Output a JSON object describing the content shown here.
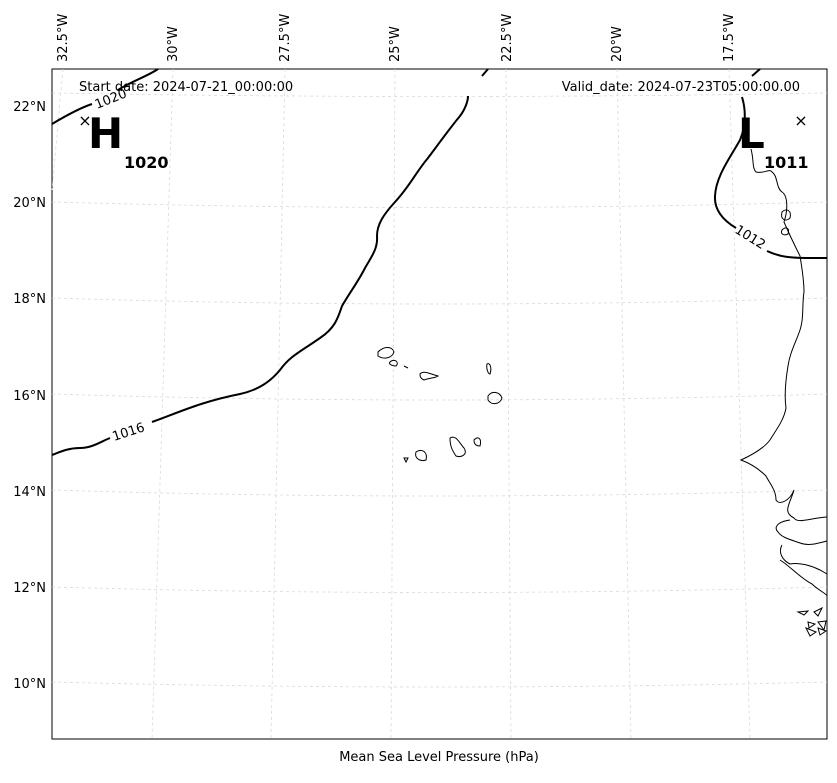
{
  "header": {
    "start_date": "Start date: 2024-07-21_00:00:00",
    "valid_date": "Valid_date: 2024-07-23T05:00:00.00"
  },
  "caption": "Mean Sea Level Pressure (hPa)",
  "longitude_ticks": [
    "32.5°W",
    "30°W",
    "27.5°W",
    "25°W",
    "22.5°W",
    "20°W",
    "17.5°W"
  ],
  "latitude_ticks": [
    "22°N",
    "20°N",
    "18°N",
    "16°N",
    "14°N",
    "12°N",
    "10°N"
  ],
  "contours": [
    {
      "value": 1020,
      "label": "1020"
    },
    {
      "value": 1016,
      "label": "1016"
    },
    {
      "value": 1012,
      "label": "1012"
    }
  ],
  "pressure_centers": [
    {
      "type": "H",
      "value": "1020"
    },
    {
      "type": "L",
      "value": "1011"
    }
  ],
  "colors": {
    "contour": "#000000",
    "grid": "#d9d9d9",
    "coast": "#000000",
    "background": "#ffffff"
  }
}
